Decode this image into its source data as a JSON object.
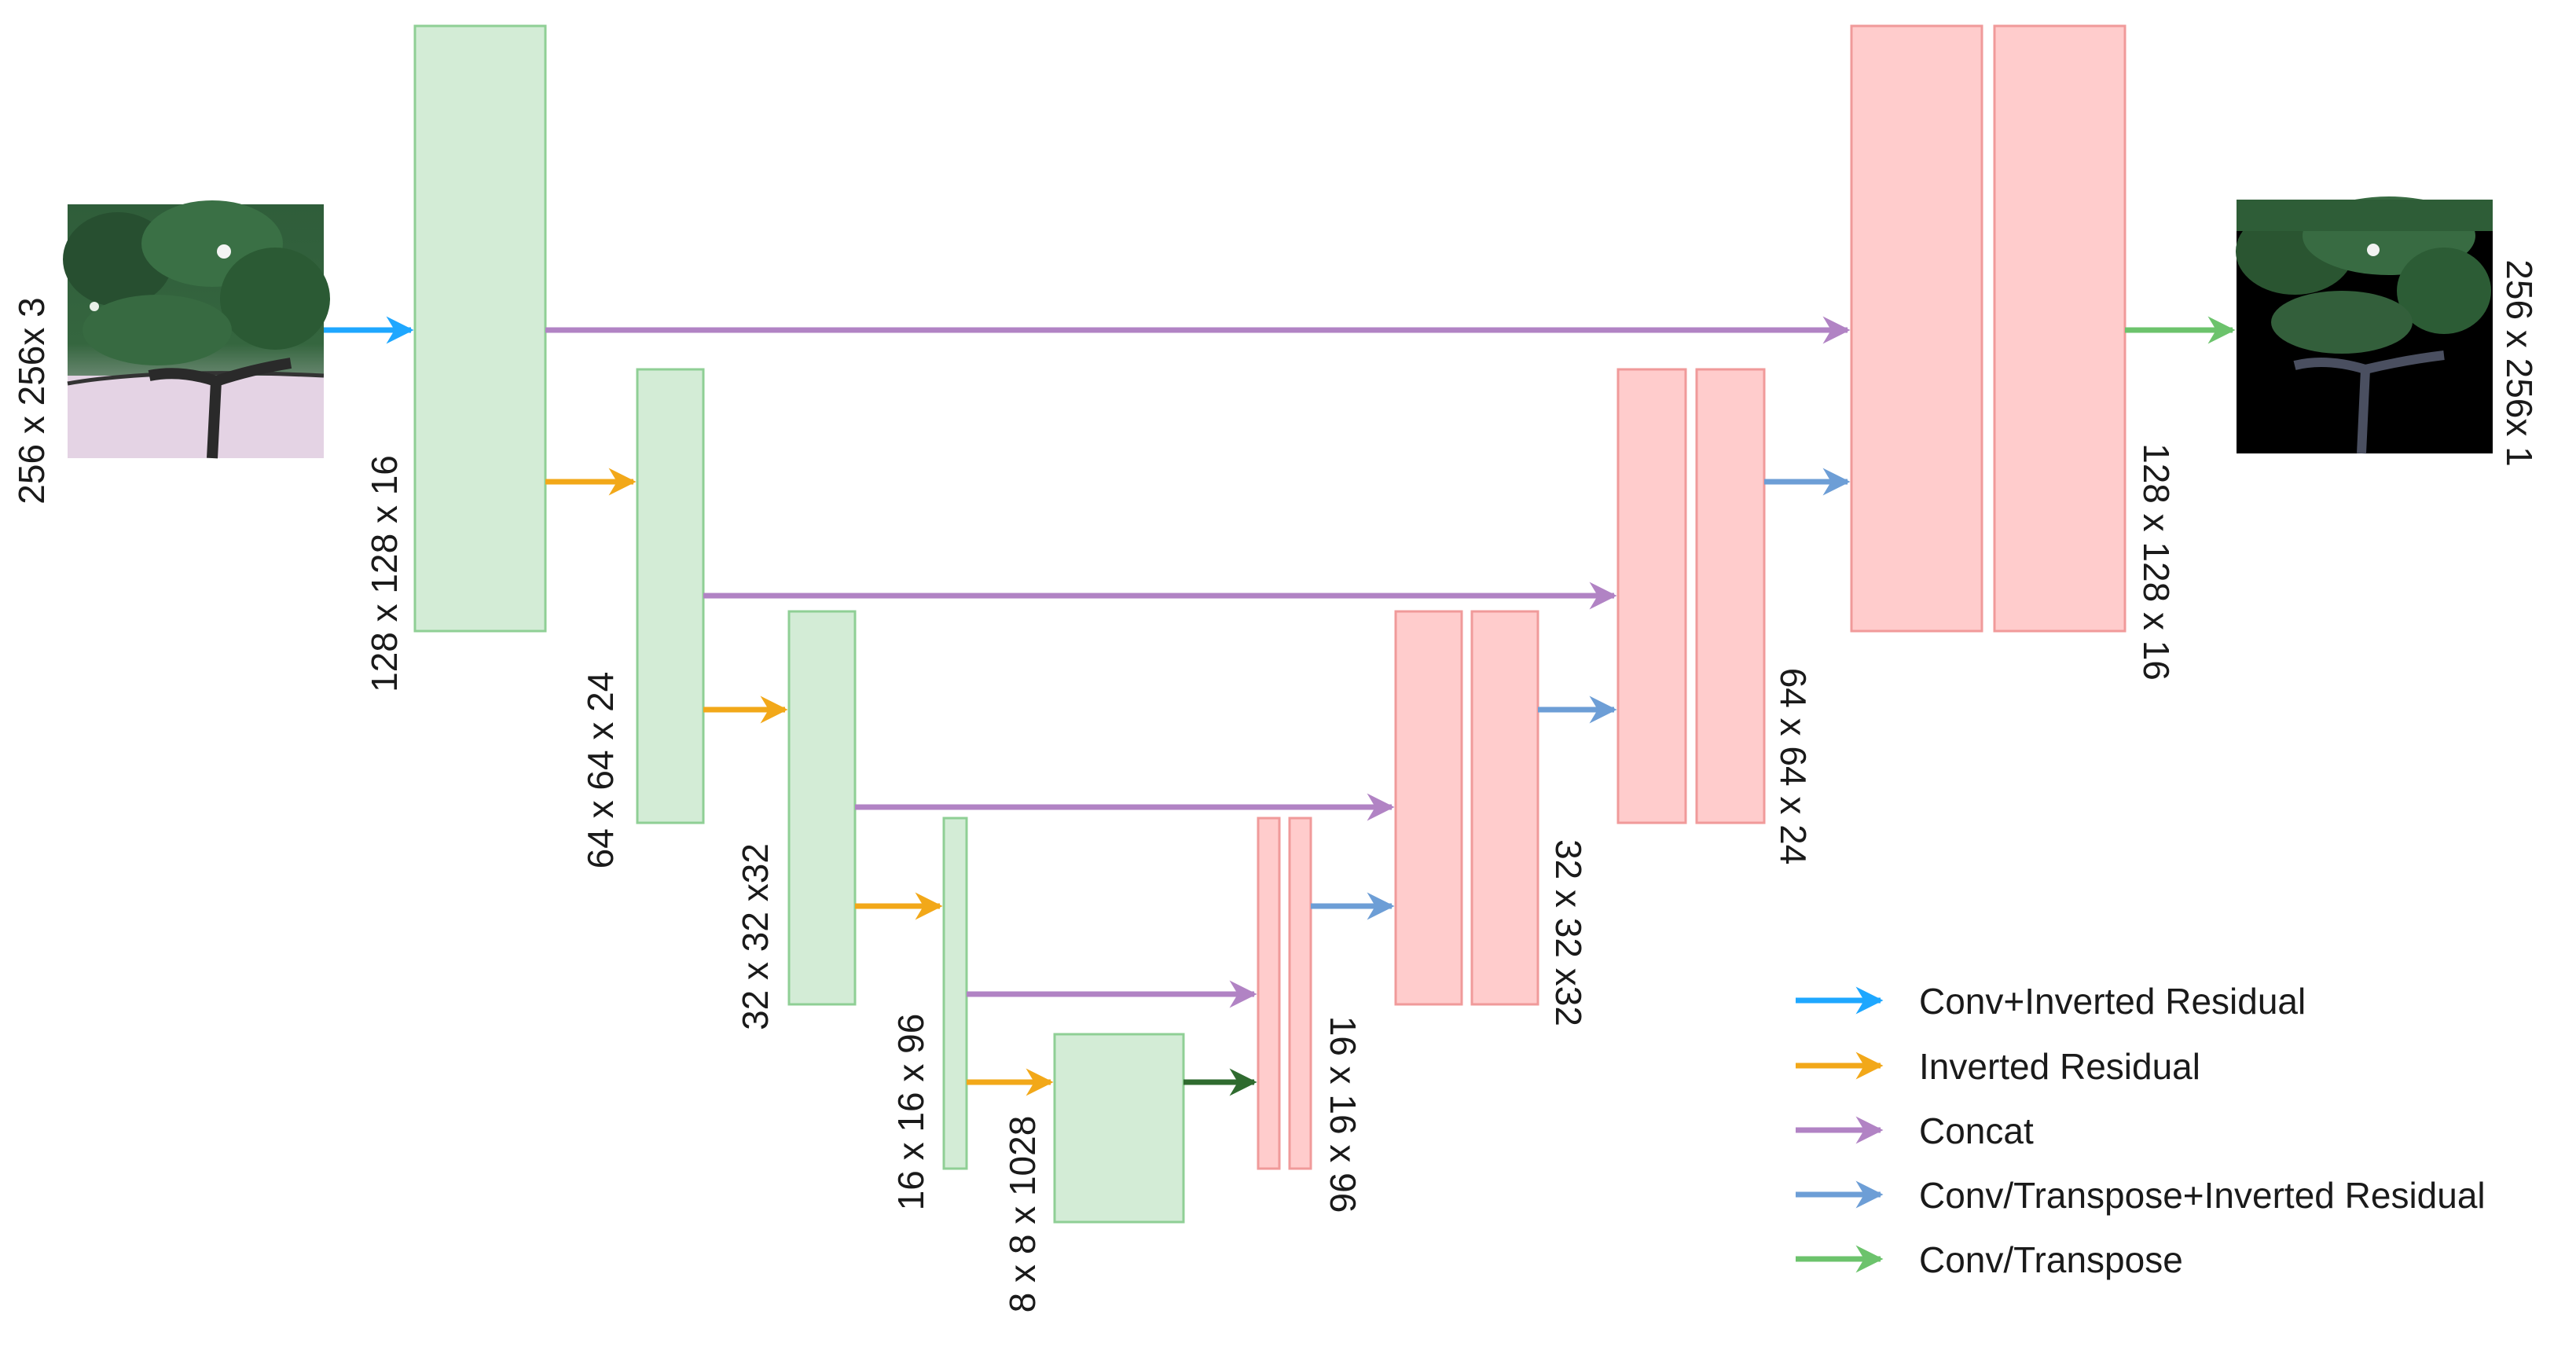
{
  "colors": {
    "conv_inverted_residual": "#1ea7ff",
    "inverted_residual": "#f2a819",
    "concat": "#b183c4",
    "conv_transpose_inverted_residual": "#6d9ed6",
    "conv_transpose": "#6cc36c",
    "bottleneck_arrow": "#2f6b2f",
    "encoder_fill": "#d3ecd6",
    "decoder_fill": "#ffcccc"
  },
  "images": {
    "input": {
      "label": "256 x 256x 3",
      "content": "RGB photo of a grapevine canopy and trunk"
    },
    "output": {
      "label": "256 x 256x 1",
      "content": "segmented grapevine mask on black background"
    }
  },
  "encoder": [
    {
      "label": "128 x 128 x 16"
    },
    {
      "label": "64 x 64 x 24"
    },
    {
      "label": "32 x 32 x32"
    },
    {
      "label": "16 x 16 x 96"
    },
    {
      "label": "8 x 8 x 1028"
    }
  ],
  "decoder": [
    {
      "label": "16 x 16 x 96"
    },
    {
      "label": "32 x 32 x32"
    },
    {
      "label": "64 x 64 x 24"
    },
    {
      "label": "128 x 128 x 16"
    }
  ],
  "legend": [
    {
      "label": "Conv+Inverted Residual",
      "color": "#1ea7ff"
    },
    {
      "label": "Inverted Residual",
      "color": "#f2a819"
    },
    {
      "label": "Concat",
      "color": "#b183c4"
    },
    {
      "label": "Conv/Transpose+Inverted Residual",
      "color": "#6d9ed6"
    },
    {
      "label": "Conv/Transpose",
      "color": "#6cc36c"
    }
  ]
}
